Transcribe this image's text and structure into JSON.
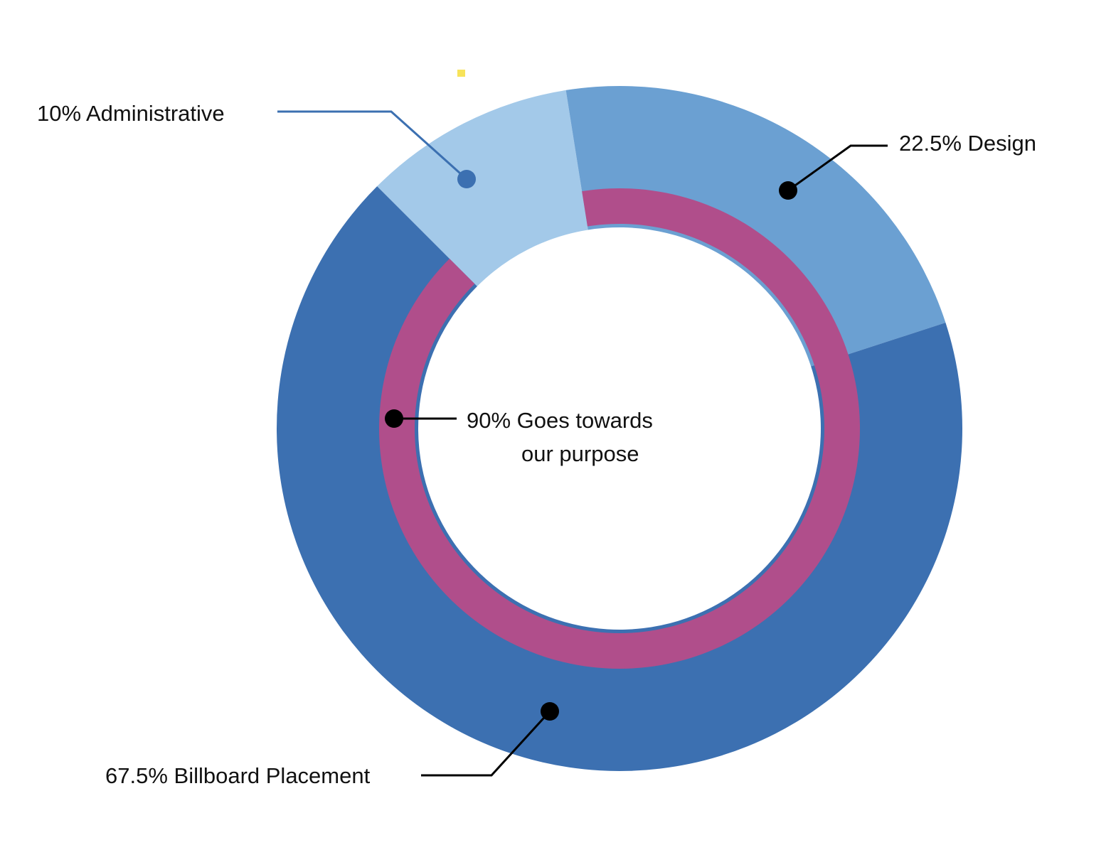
{
  "chart_data": {
    "type": "pie",
    "variant": "donut",
    "slices": [
      {
        "label": "10% Administrative",
        "value": 10,
        "color": "#a3c9e9"
      },
      {
        "label": "22.5% Design",
        "value": 22.5,
        "color": "#6ba0d2"
      },
      {
        "label": "67.5% Billboard Placement",
        "value": 67.5,
        "color": "#3c70b1"
      }
    ],
    "inner_ring": {
      "value": 90,
      "color": "#b04e8b",
      "label_lines": [
        "90% Goes towards",
        "our purpose"
      ]
    },
    "accent_colors": {
      "administrative_leader": "#3c70b1",
      "default_leader": "#000000",
      "marker": "#f7e35a"
    }
  }
}
